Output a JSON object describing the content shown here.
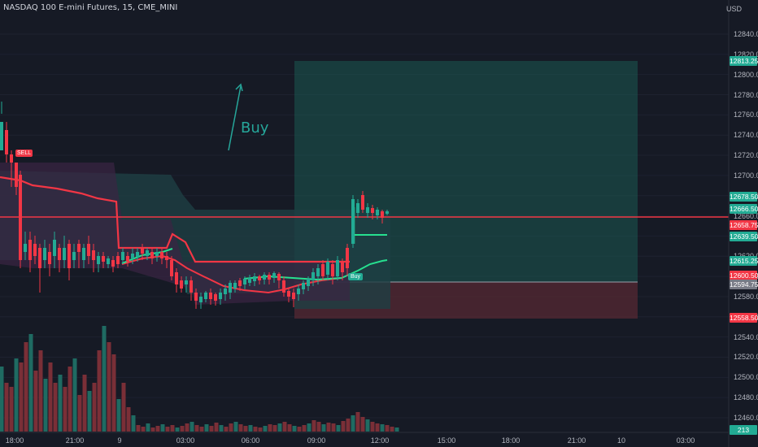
{
  "header": {
    "symbol": "NASDAQ 100 E-mini Futures, 15, CME_MINI",
    "currency": "USD"
  },
  "annotations": {
    "buy_text": "Buy",
    "sell_signal": "SELL",
    "buy_signal": "Buy"
  },
  "price_axis": {
    "ticks": [
      "12840.00",
      "12820.00",
      "12800.00",
      "12780.00",
      "12760.00",
      "12740.00",
      "12720.00",
      "12700.00",
      "12680.00",
      "12660.00",
      "12640.00",
      "12620.00",
      "12600.00",
      "12580.00",
      "12560.00",
      "12540.00",
      "12520.00",
      "12500.00",
      "12480.00",
      "12460.00"
    ]
  },
  "price_tags": [
    {
      "text": "12813.25",
      "color": "#22ab94"
    },
    {
      "text": "12678.50",
      "color": "#22ab94"
    },
    {
      "text": "12666.50",
      "color": "#22ab94"
    },
    {
      "text": "12658.75",
      "color": "#f23645"
    },
    {
      "text": "12639.50",
      "color": "#22ab94"
    },
    {
      "text": "12615.25",
      "color": "#22ab94"
    },
    {
      "text": "12600.50",
      "color": "#f23645"
    },
    {
      "text": "12594.75",
      "color": "#787b86"
    },
    {
      "text": "12558.50",
      "color": "#f23645"
    },
    {
      "text": "213",
      "color": "#22ab94"
    }
  ],
  "time_axis": {
    "labels": [
      "18:00",
      "21:00",
      "9",
      "03:00",
      "06:00",
      "09:00",
      "12:00",
      "15:00",
      "18:00",
      "21:00",
      "10",
      "03:00"
    ]
  },
  "position": {
    "entry": 12600.5,
    "target": 12813.25,
    "stop": 12558.5
  },
  "colors": {
    "up": "#22ab94",
    "down": "#f23645",
    "background": "#161a25"
  }
}
